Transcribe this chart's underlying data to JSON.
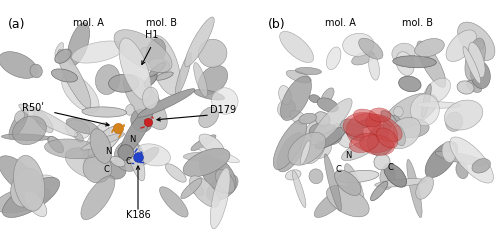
{
  "fig_width": 5.0,
  "fig_height": 2.38,
  "dpi": 100,
  "bg_color": "#ffffff",
  "panel_a_label": "(a)",
  "panel_b_label": "(b)",
  "panel_a_mol_A": "mol. A",
  "panel_a_mol_B": "mol. B",
  "panel_b_mol_A": "mol. A",
  "panel_b_mol_B": "mol. B",
  "label_H1": "H1",
  "label_R50": "R50ʹ",
  "label_D179": "D179",
  "label_K186": "K186",
  "label_N1": "N",
  "label_N2": "N",
  "label_C1": "C",
  "label_C2": "C",
  "label_C3": "C",
  "label_N3": "N",
  "orange_color": "#d4831a",
  "red_color": "#cc2222",
  "blue_color": "#2244cc",
  "pocket_color": "#cc4444",
  "pocket_alpha": 0.5,
  "text_fontsize": 7,
  "small_fontsize": 6,
  "panel_label_fontsize": 9
}
